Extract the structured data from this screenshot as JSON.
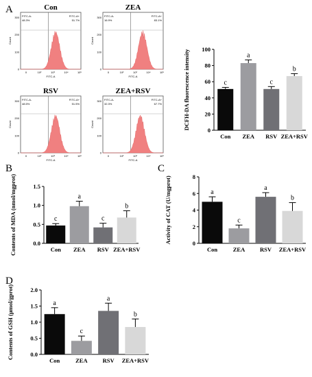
{
  "panels": {
    "A": "A",
    "B": "B",
    "C": "C",
    "D": "D"
  },
  "flow_panels": [
    {
      "title": "Con",
      "gate_left": "FITC-A-",
      "gate_right": "FITC-A+",
      "pct_left": "48.3%",
      "pct_right": "51.7%"
    },
    {
      "title": "ZEA",
      "gate_left": "FITC-A-",
      "gate_right": "FITC-A+",
      "pct_left": "16.9%",
      "pct_right": "83.1%"
    },
    {
      "title": "RSV",
      "gate_left": "FITC-A-",
      "gate_right": "FITC-A+",
      "pct_left": "48.5%",
      "pct_right": "51.5%"
    },
    {
      "title": "ZEA+RSV",
      "gate_left": "FITC-A-",
      "gate_right": "FITC-A+",
      "pct_left": "32.3%",
      "pct_right": "67.7%"
    }
  ],
  "flow_axis": {
    "xlabel": "FITC-A",
    "ylabel": "Count",
    "yticks": [
      "0",
      "100",
      "200",
      "300"
    ],
    "xticks": [
      "0",
      "10²",
      "10³",
      "10⁴",
      "10⁵"
    ]
  },
  "colors": {
    "histogram": "#f08080",
    "bar_con": "#0a0a0a",
    "bar_zea": "#9c9ca0",
    "bar_rsv": "#707075",
    "bar_zearsv": "#d8d8d8"
  },
  "chart_data": [
    {
      "id": "A",
      "type": "bar",
      "categories": [
        "Con",
        "ZEA",
        "RSV",
        "ZEA+RSV"
      ],
      "values": [
        51,
        83,
        51,
        67
      ],
      "errors": [
        2,
        4,
        3,
        3
      ],
      "letters": [
        "c",
        "a",
        "c",
        "b"
      ],
      "ylabel": "DCFH-DA fluorescence intensity",
      "ylim": [
        0,
        100
      ],
      "yticks": [
        0,
        20,
        40,
        60,
        80,
        100
      ]
    },
    {
      "id": "B",
      "type": "bar",
      "categories": [
        "Con",
        "ZEA",
        "RSV",
        "ZEA+RSV"
      ],
      "values": [
        0.47,
        0.98,
        0.42,
        0.68
      ],
      "errors": [
        0.05,
        0.13,
        0.11,
        0.18
      ],
      "letters": [
        "c",
        "a",
        "c",
        "b"
      ],
      "ylabel": "Contents of MDA (nmol/mgprot)",
      "ylim": [
        0,
        1.5
      ],
      "yticks": [
        0.0,
        0.5,
        1.0,
        1.5
      ],
      "ytick_labels": [
        "0.0",
        "0.5",
        "1.0",
        "1.5"
      ]
    },
    {
      "id": "C",
      "type": "bar",
      "categories": [
        "Con",
        "ZEA",
        "RSV",
        "ZEA+RSV"
      ],
      "values": [
        5.0,
        1.8,
        5.6,
        3.9
      ],
      "errors": [
        0.6,
        0.4,
        0.5,
        1.0
      ],
      "letters": [
        "a",
        "c",
        "a",
        "b"
      ],
      "ylabel": "Activity of CAT (U/mgprot)",
      "ylim": [
        0,
        8
      ],
      "yticks": [
        0,
        2,
        4,
        6,
        8
      ]
    },
    {
      "id": "D",
      "type": "bar",
      "categories": [
        "Con",
        "ZEA",
        "RSV",
        "ZEA+RSV"
      ],
      "values": [
        1.25,
        0.42,
        1.35,
        0.85
      ],
      "errors": [
        0.2,
        0.15,
        0.24,
        0.25
      ],
      "letters": [
        "a",
        "c",
        "a",
        "b"
      ],
      "ylabel": "Contents of GSH (μmol/gprot)",
      "ylim": [
        0,
        2.0
      ],
      "yticks": [
        0.0,
        0.5,
        1.0,
        1.5,
        2.0
      ],
      "ytick_labels": [
        "0.0",
        "0.5",
        "1.0",
        "1.5",
        "2.0"
      ]
    }
  ]
}
